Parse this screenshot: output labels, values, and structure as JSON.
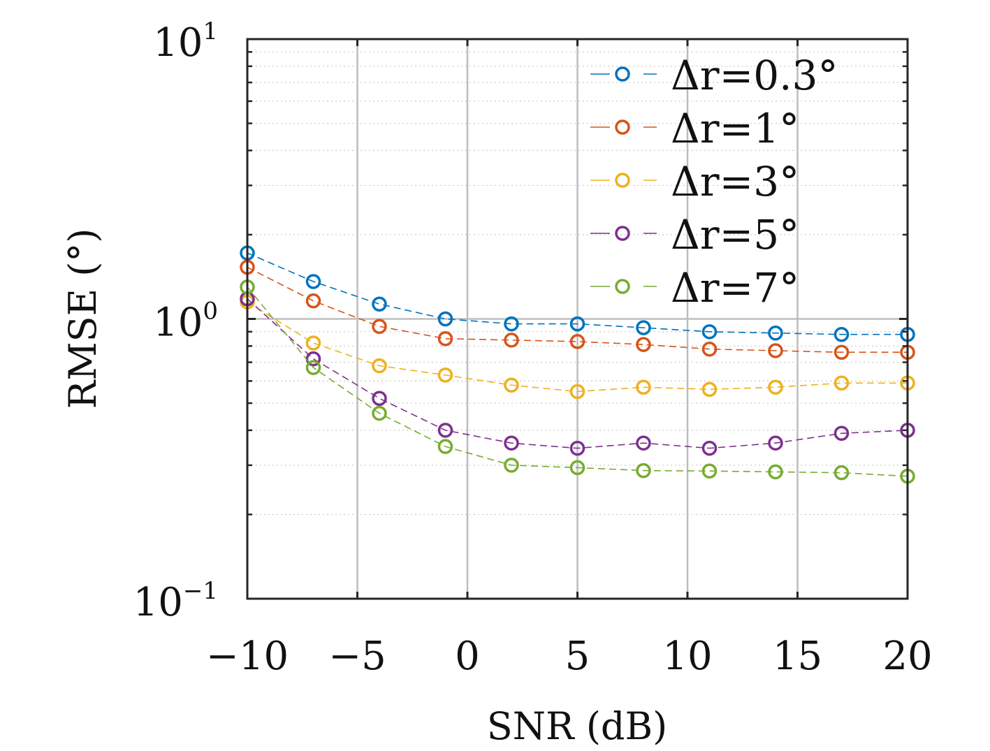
{
  "chart_data": {
    "type": "line",
    "title": "",
    "xlabel": "SNR (dB)",
    "ylabel": "RMSE (°)",
    "xlim": [
      -10,
      20
    ],
    "ylim": [
      0.1,
      10
    ],
    "yscale": "log",
    "xticks": [
      -10,
      -5,
      0,
      5,
      10,
      15,
      20
    ],
    "xticklabels": [
      "−10",
      "−5",
      "0",
      "5",
      "10",
      "15",
      "20"
    ],
    "yticks": [
      0.1,
      1,
      10
    ],
    "yticklabels": [
      {
        "base": "10",
        "exp": "−1"
      },
      {
        "base": "10",
        "exp": "0"
      },
      {
        "base": "10",
        "exp": "1"
      }
    ],
    "grid": true,
    "minor_grid": true,
    "legend_position": "top-right",
    "line_style": "dashed",
    "marker": "open-circle",
    "x": [
      -10,
      -7,
      -4,
      -1,
      2,
      5,
      8,
      11,
      14,
      17,
      20
    ],
    "series": [
      {
        "name": "Δr=0.3°",
        "color": "#0072BD",
        "values": [
          1.72,
          1.36,
          1.13,
          1.0,
          0.96,
          0.96,
          0.93,
          0.9,
          0.89,
          0.88,
          0.88
        ]
      },
      {
        "name": "Δr=1°",
        "color": "#D95319",
        "values": [
          1.53,
          1.16,
          0.94,
          0.85,
          0.84,
          0.83,
          0.81,
          0.78,
          0.77,
          0.76,
          0.76
        ]
      },
      {
        "name": "Δr=3°",
        "color": "#EDB120",
        "values": [
          1.15,
          0.82,
          0.68,
          0.63,
          0.58,
          0.55,
          0.57,
          0.56,
          0.57,
          0.59,
          0.59
        ]
      },
      {
        "name": "Δr=5°",
        "color": "#7E2F8E",
        "values": [
          1.18,
          0.72,
          0.52,
          0.4,
          0.36,
          0.345,
          0.36,
          0.345,
          0.36,
          0.39,
          0.4
        ]
      },
      {
        "name": "Δr=7°",
        "color": "#77AC30",
        "values": [
          1.3,
          0.67,
          0.46,
          0.35,
          0.3,
          0.294,
          0.287,
          0.286,
          0.284,
          0.282,
          0.274
        ]
      }
    ]
  }
}
